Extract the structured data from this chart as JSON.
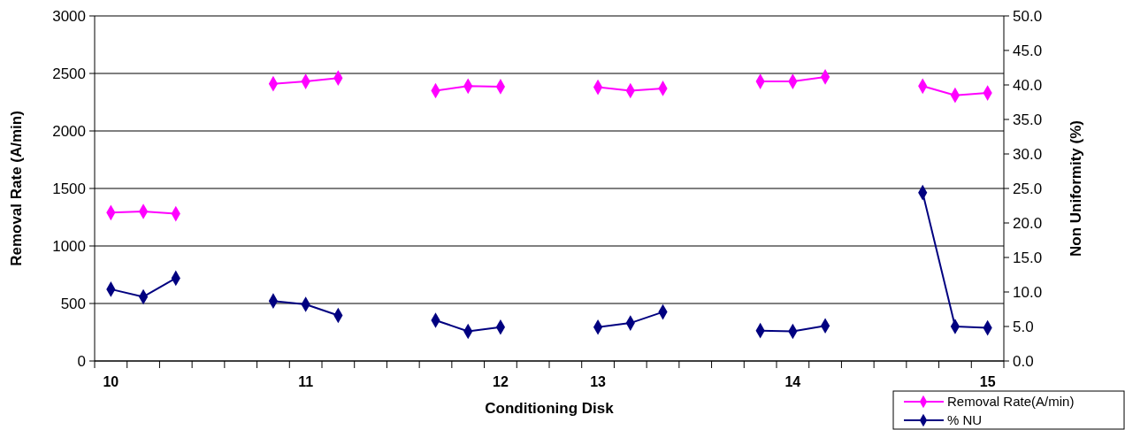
{
  "chart_data": {
    "type": "line",
    "xlabel": "Conditioning Disk",
    "ylabel": "Removal Rate (A/min)",
    "y2label": "Non Uniformity (%)",
    "categories": [
      "10",
      null,
      null,
      null,
      null,
      null,
      "11",
      null,
      null,
      null,
      null,
      null,
      "12",
      null,
      null,
      "13",
      null,
      null,
      null,
      null,
      null,
      "14",
      null,
      null,
      null,
      null,
      null,
      "15"
    ],
    "series": [
      {
        "name": "Removal Rate(A/min)",
        "color": "#ff00ff",
        "values": [
          1290,
          1300,
          1280,
          null,
          null,
          2410,
          2430,
          2460,
          null,
          null,
          2350,
          2390,
          2385,
          null,
          null,
          2380,
          2350,
          2370,
          null,
          null,
          2430,
          2430,
          2470,
          null,
          null,
          2390,
          2310,
          2330
        ]
      },
      {
        "name": "% NU",
        "color": "#000080",
        "axis": "y2",
        "values": [
          10.4,
          9.3,
          12.0,
          null,
          null,
          8.7,
          8.2,
          6.6,
          null,
          null,
          5.9,
          4.3,
          4.9,
          null,
          null,
          4.9,
          5.5,
          7.1,
          null,
          null,
          4.4,
          4.3,
          5.1,
          null,
          null,
          24.4,
          5.0,
          4.8
        ]
      }
    ],
    "ylim": [
      0,
      3000
    ],
    "yticks": [
      0,
      500,
      1000,
      1500,
      2000,
      2500,
      3000
    ],
    "y2lim": [
      0,
      50
    ],
    "y2ticks": [
      {
        "value": 0,
        "label": "0.0"
      },
      {
        "value": 5,
        "label": "5.0"
      },
      {
        "value": 10,
        "label": "10.0"
      },
      {
        "value": 15,
        "label": "15.0"
      },
      {
        "value": 20,
        "label": "20.0"
      },
      {
        "value": 25,
        "label": "25.0"
      },
      {
        "value": 30,
        "label": "30.0"
      },
      {
        "value": 35,
        "label": "35.0"
      },
      {
        "value": 40,
        "label": "40.0"
      },
      {
        "value": 45,
        "label": "45.0"
      },
      {
        "value": 50,
        "label": "50.0"
      }
    ],
    "grid": "y",
    "legend": "bottom right",
    "marker": "diamond",
    "line_style": "solid"
  }
}
